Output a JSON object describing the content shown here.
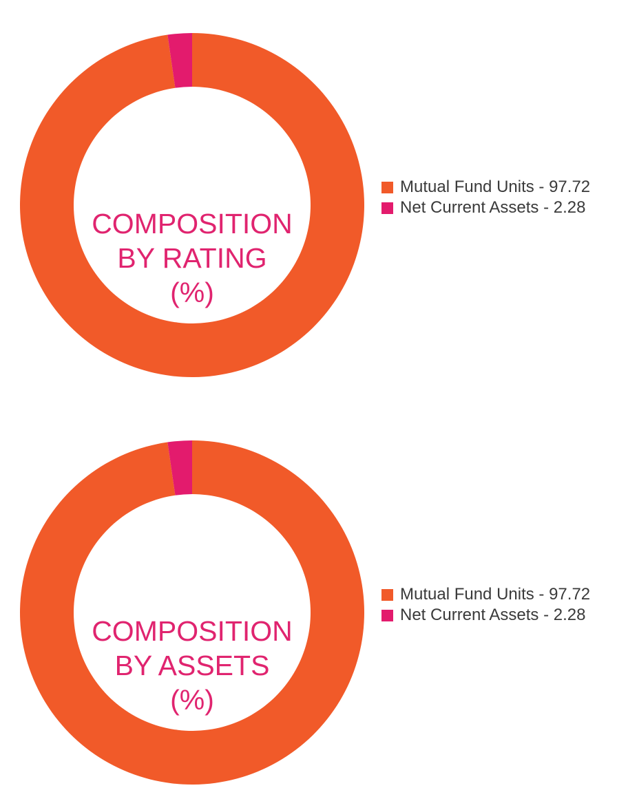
{
  "chart_data": [
    {
      "type": "pie",
      "title_lines": [
        "COMPOSITION",
        "BY RATING",
        "(%)"
      ],
      "slices": [
        {
          "label": "Mutual Fund Units - 97.72",
          "name": "Mutual Fund Units",
          "value": 97.72,
          "color": "#f15a29"
        },
        {
          "label": "Net Current Assets - 2.28",
          "name": "Net Current Assets",
          "value": 2.28,
          "color": "#e31b6d"
        }
      ],
      "legend_position": "right"
    },
    {
      "type": "pie",
      "title_lines": [
        "COMPOSITION",
        "BY ASSETS",
        "(%)"
      ],
      "slices": [
        {
          "label": "Mutual Fund Units - 97.72",
          "name": "Mutual Fund Units",
          "value": 97.72,
          "color": "#f15a29"
        },
        {
          "label": "Net Current Assets - 2.28",
          "name": "Net Current Assets",
          "value": 2.28,
          "color": "#e31b6d"
        }
      ],
      "legend_position": "right"
    }
  ],
  "colors": {
    "title": "#e0246f",
    "legend_text": "#3a3a3a"
  }
}
